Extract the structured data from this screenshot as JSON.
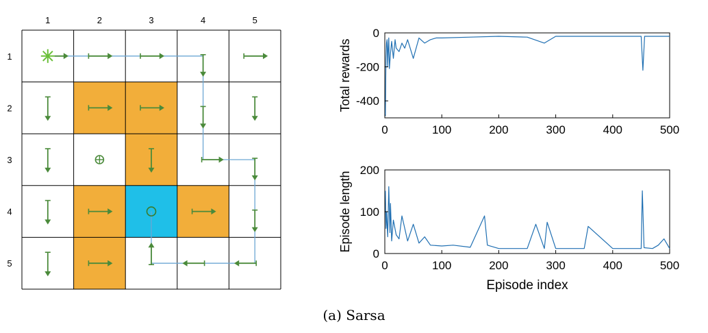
{
  "caption": "(a) Sarsa",
  "colors": {
    "forbidden": "#f2ae3a",
    "target": "#1fbfe8",
    "arrow": "#4a8a3a",
    "trajectory": "#6ca7d4",
    "start": "#6bbf3a",
    "series": "#1f6fb2",
    "grid_line": "#000000"
  },
  "grid": {
    "column_labels": [
      "1",
      "2",
      "3",
      "4",
      "5"
    ],
    "row_labels": [
      "1",
      "2",
      "3",
      "4",
      "5"
    ],
    "forbidden_cells": [
      [
        2,
        2
      ],
      [
        2,
        3
      ],
      [
        3,
        3
      ],
      [
        4,
        2
      ],
      [
        4,
        4
      ],
      [
        5,
        2
      ]
    ],
    "target_cell": [
      4,
      3
    ],
    "start_cell": [
      1,
      1
    ],
    "start_icon": "asterisk-icon",
    "target_icon": "circle-icon",
    "stay_icon": "circle-plus-icon",
    "policy": [
      [
        "start",
        "both-horizontal",
        "both-horizontal",
        "down",
        "both-horizontal"
      ],
      [
        "both-vertical",
        "both-horizontal",
        "both-horizontal",
        "down",
        "both-vertical"
      ],
      [
        "both-vertical",
        "stay",
        "both-vertical",
        "right",
        "down"
      ],
      [
        "both-vertical",
        "both-horizontal",
        "target",
        "both-horizontal",
        "down"
      ],
      [
        "both-vertical",
        "both-horizontal",
        "up",
        "left",
        "left"
      ]
    ],
    "trajectory": [
      [
        1,
        1
      ],
      [
        1,
        4
      ],
      [
        3,
        4
      ],
      [
        3,
        5
      ],
      [
        5,
        5
      ],
      [
        5,
        3
      ],
      [
        4,
        3
      ]
    ]
  },
  "chart_data": [
    {
      "type": "line",
      "title": "",
      "xlabel": "",
      "ylabel": "Total rewards",
      "xlim": [
        0,
        500
      ],
      "ylim": [
        -500,
        0
      ],
      "xticks": [
        0,
        100,
        200,
        300,
        400,
        500
      ],
      "yticks": [
        0,
        -200,
        -400
      ],
      "xtick_labels": [
        "0",
        "100",
        "200",
        "300",
        "400",
        "500"
      ],
      "ytick_labels": [
        "0",
        "-200",
        "-400"
      ],
      "grid": false,
      "series": [
        {
          "x": [
            1,
            2,
            3,
            4,
            5,
            6,
            7,
            8,
            10,
            12,
            15,
            18,
            20,
            25,
            30,
            35,
            40,
            50,
            60,
            70,
            80,
            90,
            100,
            150,
            200,
            250,
            280,
            300,
            350,
            400,
            450,
            453,
            456,
            500
          ],
          "y": [
            -490,
            -150,
            -60,
            -40,
            -200,
            -90,
            -30,
            -210,
            -120,
            -50,
            -150,
            -40,
            -90,
            -110,
            -60,
            -90,
            -40,
            -150,
            -30,
            -60,
            -40,
            -30,
            -30,
            -25,
            -20,
            -25,
            -60,
            -20,
            -20,
            -20,
            -20,
            -220,
            -20,
            -20
          ]
        }
      ]
    },
    {
      "type": "line",
      "title": "",
      "xlabel": "Episode index",
      "ylabel": "Episode length",
      "xlim": [
        0,
        500
      ],
      "ylim": [
        0,
        200
      ],
      "xticks": [
        0,
        100,
        200,
        300,
        400,
        500
      ],
      "yticks": [
        0,
        100,
        200
      ],
      "xtick_labels": [
        "0",
        "100",
        "200",
        "300",
        "400",
        "500"
      ],
      "ytick_labels": [
        "0",
        "100",
        "200"
      ],
      "grid": false,
      "series": [
        {
          "x": [
            1,
            2,
            3,
            5,
            7,
            9,
            10,
            12,
            15,
            20,
            25,
            30,
            40,
            50,
            60,
            70,
            80,
            100,
            120,
            150,
            175,
            180,
            200,
            250,
            265,
            280,
            285,
            300,
            350,
            357,
            400,
            450,
            452,
            455,
            470,
            480,
            490,
            500
          ],
          "y": [
            150,
            60,
            100,
            40,
            160,
            50,
            120,
            30,
            80,
            45,
            35,
            90,
            30,
            70,
            25,
            40,
            20,
            18,
            20,
            15,
            90,
            20,
            12,
            12,
            70,
            12,
            75,
            12,
            12,
            65,
            12,
            12,
            150,
            14,
            12,
            20,
            35,
            12
          ]
        }
      ]
    }
  ]
}
